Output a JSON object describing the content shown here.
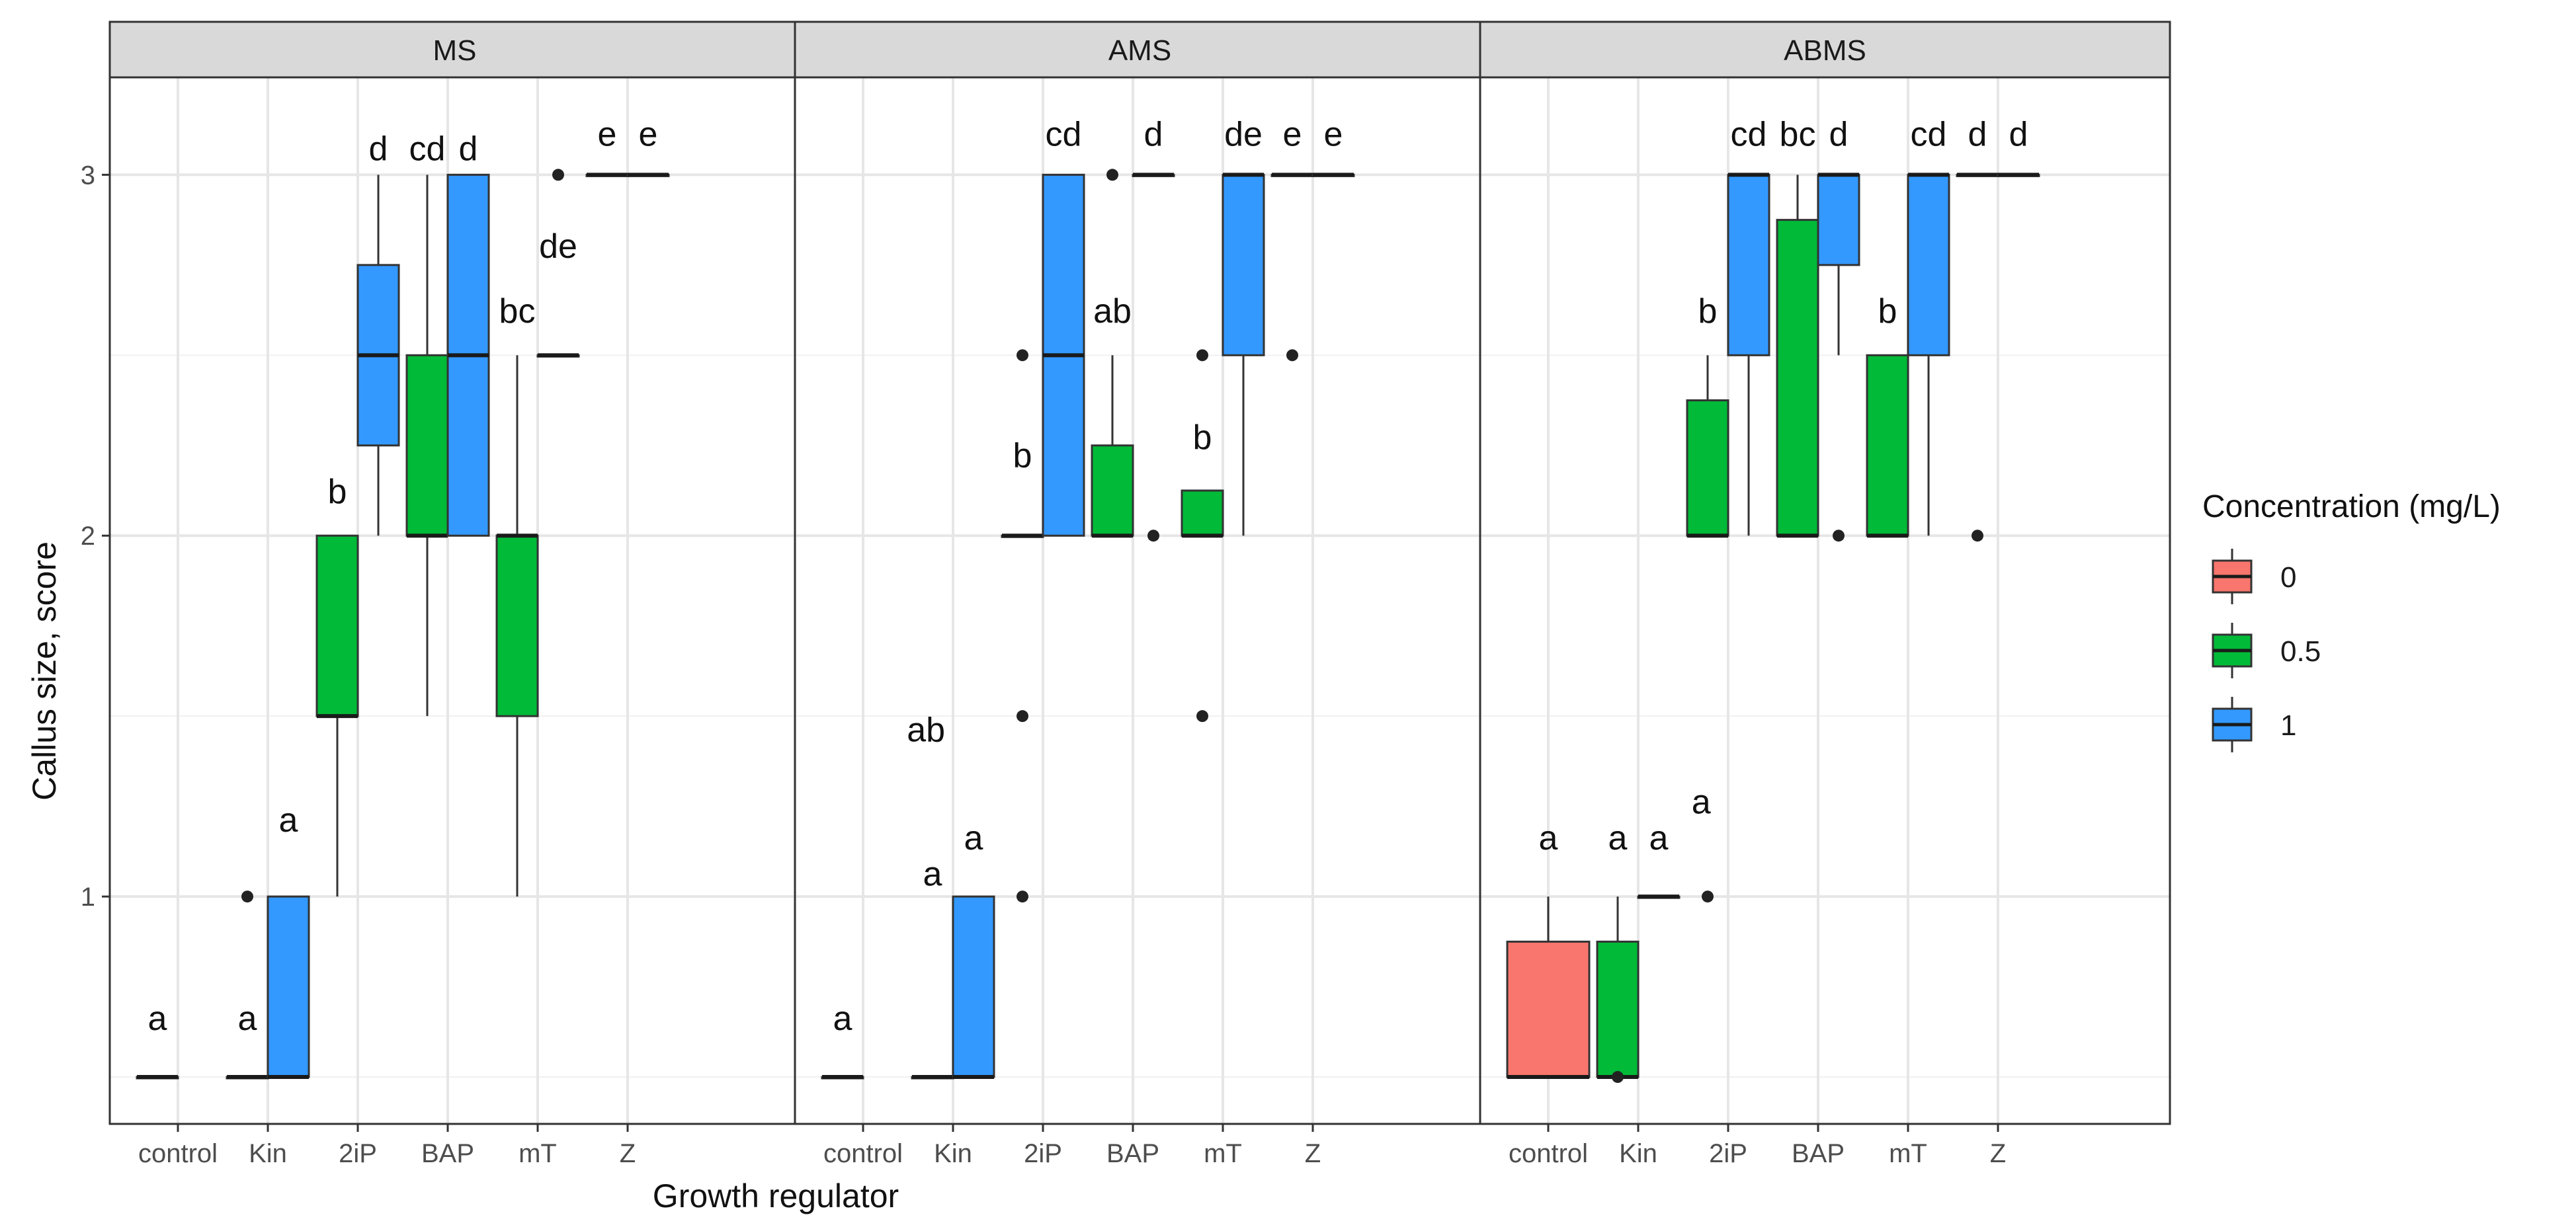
{
  "chart_data": {
    "type": "boxplot",
    "facet_by": "medium",
    "facets": [
      "MS",
      "AMS",
      "ABMS"
    ],
    "xlabel": "Growth regulator",
    "ylabel": "Callus size, score",
    "categories": [
      "control",
      "Kin",
      "2iP",
      "BAP",
      "mT",
      "Z"
    ],
    "ylim": [
      0.37,
      3.27
    ],
    "yticks": [
      1,
      2,
      3
    ],
    "grid": true,
    "legend": {
      "title": "Concentration (mg/L)",
      "position": "right",
      "items": [
        {
          "label": "0",
          "color": "#F8766D"
        },
        {
          "label": "0.5",
          "color": "#00BA38"
        },
        {
          "label": "1",
          "color": "#3399FF"
        }
      ]
    },
    "panels": [
      {
        "name": "MS",
        "boxes": [
          {
            "category": "control",
            "concentration": "0.5",
            "q1": 0.5,
            "median": 0.5,
            "q3": 0.5,
            "wlo": 0.5,
            "whi": 0.5,
            "outliers": [],
            "letter": "a",
            "letter_y": 0.63
          },
          {
            "category": "Kin",
            "concentration": "0.5",
            "q1": 0.5,
            "median": 0.5,
            "q3": 0.5,
            "wlo": 0.5,
            "whi": 0.5,
            "outliers": [
              1.0
            ],
            "letter": "a",
            "letter_y": 0.63
          },
          {
            "category": "Kin",
            "concentration": "1",
            "q1": 0.5,
            "median": 0.5,
            "q3": 1.0,
            "wlo": 0.5,
            "whi": 1.0,
            "outliers": [],
            "letter": "a",
            "letter_y": 1.18
          },
          {
            "category": "2iP",
            "concentration": "0.5",
            "q1": 1.5,
            "median": 1.5,
            "q3": 2.0,
            "wlo": 1.0,
            "whi": 2.0,
            "outliers": [],
            "letter": "b",
            "letter_y": 2.09
          },
          {
            "category": "2iP",
            "concentration": "1",
            "q1": 2.25,
            "median": 2.5,
            "q3": 2.75,
            "wlo": 2.0,
            "whi": 3.0,
            "outliers": [],
            "letter": "d",
            "letter_y": 3.04
          },
          {
            "category": "BAP",
            "concentration": "0.5",
            "q1": 2.0,
            "median": 2.0,
            "q3": 2.5,
            "wlo": 1.5,
            "whi": 3.0,
            "outliers": [],
            "letter": "cd",
            "letter_y": 3.04
          },
          {
            "category": "BAP",
            "concentration": "1",
            "q1": 2.0,
            "median": 2.5,
            "q3": 3.0,
            "wlo": 2.0,
            "whi": 3.0,
            "outliers": [],
            "letter": "d",
            "letter_y": 3.04
          },
          {
            "category": "mT",
            "concentration": "0.5",
            "q1": 1.5,
            "median": 2.0,
            "q3": 2.0,
            "wlo": 1.0,
            "whi": 2.5,
            "outliers": [],
            "letter": "bc",
            "letter_y": 2.59
          },
          {
            "category": "mT",
            "concentration": "1",
            "q1": 2.5,
            "median": 2.5,
            "q3": 2.5,
            "wlo": 2.5,
            "whi": 2.5,
            "outliers": [
              3.0
            ],
            "letter": "de",
            "letter_y": 2.77
          },
          {
            "category": "Z",
            "concentration": "0.5",
            "q1": 3.0,
            "median": 3.0,
            "q3": 3.0,
            "wlo": 3.0,
            "whi": 3.0,
            "outliers": [],
            "letter": "e",
            "letter_y": 3.08
          },
          {
            "category": "Z",
            "concentration": "1",
            "q1": 3.0,
            "median": 3.0,
            "q3": 3.0,
            "wlo": 3.0,
            "whi": 3.0,
            "outliers": [],
            "letter": "e",
            "letter_y": 3.08
          }
        ]
      },
      {
        "name": "AMS",
        "boxes": [
          {
            "category": "control",
            "concentration": "0.5",
            "q1": 0.5,
            "median": 0.5,
            "q3": 0.5,
            "wlo": 0.5,
            "whi": 0.5,
            "outliers": [],
            "letter": "a",
            "letter_y": 0.63
          },
          {
            "category": "Kin",
            "concentration": "0.5",
            "q1": 0.5,
            "median": 0.5,
            "q3": 0.5,
            "wlo": 0.5,
            "whi": 0.5,
            "outliers": [],
            "letter": "a",
            "letter_y": 1.03
          },
          {
            "category": "Kin",
            "concentration": "1",
            "q1": 0.5,
            "median": 0.5,
            "q3": 1.0,
            "wlo": 0.5,
            "whi": 1.0,
            "outliers": [],
            "letter": "a",
            "letter_y": 1.13
          },
          {
            "category": "2iP",
            "concentration": "0.5",
            "q1": 2.0,
            "median": 2.0,
            "q3": 2.0,
            "wlo": 2.0,
            "whi": 2.0,
            "outliers": [
              2.5,
              1.5,
              1.0
            ],
            "letter": "b",
            "letter_y": 2.19
          },
          {
            "category": "2iP",
            "concentration": "1",
            "q1": 2.0,
            "median": 2.5,
            "q3": 3.0,
            "wlo": 2.0,
            "whi": 3.0,
            "outliers": [],
            "letter": "cd",
            "letter_y": 3.08
          },
          {
            "category": "BAP",
            "concentration": "0.5",
            "q1": 2.0,
            "median": 2.0,
            "q3": 2.25,
            "wlo": 2.0,
            "whi": 2.5,
            "outliers": [
              3.0
            ],
            "letter": "ab",
            "letter_y": 2.59
          },
          {
            "category": "BAP",
            "concentration": "1",
            "q1": 3.0,
            "median": 3.0,
            "q3": 3.0,
            "wlo": 3.0,
            "whi": 3.0,
            "outliers": [
              2.0
            ],
            "letter": "d",
            "letter_y": 3.08
          },
          {
            "category": "mT",
            "concentration": "0.5",
            "q1": 2.0,
            "median": 2.0,
            "q3": 2.125,
            "wlo": 2.0,
            "whi": 2.125,
            "outliers": [
              2.5,
              1.5
            ],
            "letter": "b",
            "letter_y": 2.24
          },
          {
            "category": "mT",
            "concentration": "1",
            "q1": 2.5,
            "median": 3.0,
            "q3": 3.0,
            "wlo": 2.0,
            "whi": 3.0,
            "outliers": [],
            "letter": "de",
            "letter_y": 3.08
          },
          {
            "category": "Z",
            "concentration": "0.5",
            "q1": 3.0,
            "median": 3.0,
            "q3": 3.0,
            "wlo": 3.0,
            "whi": 3.0,
            "outliers": [
              2.5
            ],
            "letter": "e",
            "letter_y": 3.08
          },
          {
            "category": "Z",
            "concentration": "1",
            "q1": 3.0,
            "median": 3.0,
            "q3": 3.0,
            "wlo": 3.0,
            "whi": 3.0,
            "outliers": [],
            "letter": "e",
            "letter_y": 3.08
          },
          {
            "category": "Kin",
            "concentration": "",
            "q1": null,
            "median": null,
            "q3": null,
            "wlo": null,
            "whi": null,
            "outliers": [],
            "letter": "ab",
            "letter_y": 1.43,
            "letter_offset": -0.3
          }
        ]
      },
      {
        "name": "ABMS",
        "boxes": [
          {
            "category": "control",
            "concentration": "0",
            "q1": 0.5,
            "median": 0.5,
            "q3": 0.875,
            "wlo": 0.5,
            "whi": 1.0,
            "outliers": [],
            "letter": "a",
            "letter_y": 1.13
          },
          {
            "category": "Kin",
            "concentration": "0.5",
            "q1": 0.5,
            "median": 0.5,
            "q3": 0.875,
            "wlo": 0.5,
            "whi": 1.0,
            "outliers": [
              0.5
            ],
            "letter": "a",
            "letter_y": 1.13
          },
          {
            "category": "Kin",
            "concentration": "1",
            "q1": 1.0,
            "median": 1.0,
            "q3": 1.0,
            "wlo": 1.0,
            "whi": 1.0,
            "outliers": [],
            "letter": "a",
            "letter_y": 1.13
          },
          {
            "category": "2iP",
            "concentration": "0.5",
            "q1": 2.0,
            "median": 2.0,
            "q3": 2.375,
            "wlo": 2.0,
            "whi": 2.5,
            "outliers": [
              1.0
            ],
            "letter": "b",
            "letter_y": 2.59
          },
          {
            "category": "2iP",
            "concentration": "1",
            "q1": 2.5,
            "median": 3.0,
            "q3": 3.0,
            "wlo": 2.0,
            "whi": 3.0,
            "outliers": [],
            "letter": "cd",
            "letter_y": 3.08
          },
          {
            "category": "BAP",
            "concentration": "0.5",
            "q1": 2.0,
            "median": 2.0,
            "q3": 2.875,
            "wlo": 2.0,
            "whi": 3.0,
            "outliers": [],
            "letter": "bc",
            "letter_y": 3.08
          },
          {
            "category": "BAP",
            "concentration": "1",
            "q1": 2.75,
            "median": 3.0,
            "q3": 3.0,
            "wlo": 2.5,
            "whi": 3.0,
            "outliers": [
              2.0
            ],
            "letter": "d",
            "letter_y": 3.08
          },
          {
            "category": "mT",
            "concentration": "0.5",
            "q1": 2.0,
            "median": 2.0,
            "q3": 2.5,
            "wlo": 2.0,
            "whi": 2.5,
            "outliers": [],
            "letter": "b",
            "letter_y": 2.59
          },
          {
            "category": "mT",
            "concentration": "1",
            "q1": 2.5,
            "median": 3.0,
            "q3": 3.0,
            "wlo": 2.0,
            "whi": 3.0,
            "outliers": [],
            "letter": "cd",
            "letter_y": 3.08
          },
          {
            "category": "Z",
            "concentration": "0.5",
            "q1": 3.0,
            "median": 3.0,
            "q3": 3.0,
            "wlo": 3.0,
            "whi": 3.0,
            "outliers": [
              2.0
            ],
            "letter": "d",
            "letter_y": 3.08
          },
          {
            "category": "Z",
            "concentration": "1",
            "q1": 3.0,
            "median": 3.0,
            "q3": 3.0,
            "wlo": 3.0,
            "whi": 3.0,
            "outliers": [],
            "letter": "d",
            "letter_y": 3.08
          },
          {
            "category": "2iP",
            "concentration": "",
            "q1": null,
            "median": null,
            "q3": null,
            "wlo": null,
            "whi": null,
            "outliers": [],
            "letter": "a",
            "letter_y": 1.23,
            "letter_offset": -0.3
          }
        ]
      }
    ]
  }
}
